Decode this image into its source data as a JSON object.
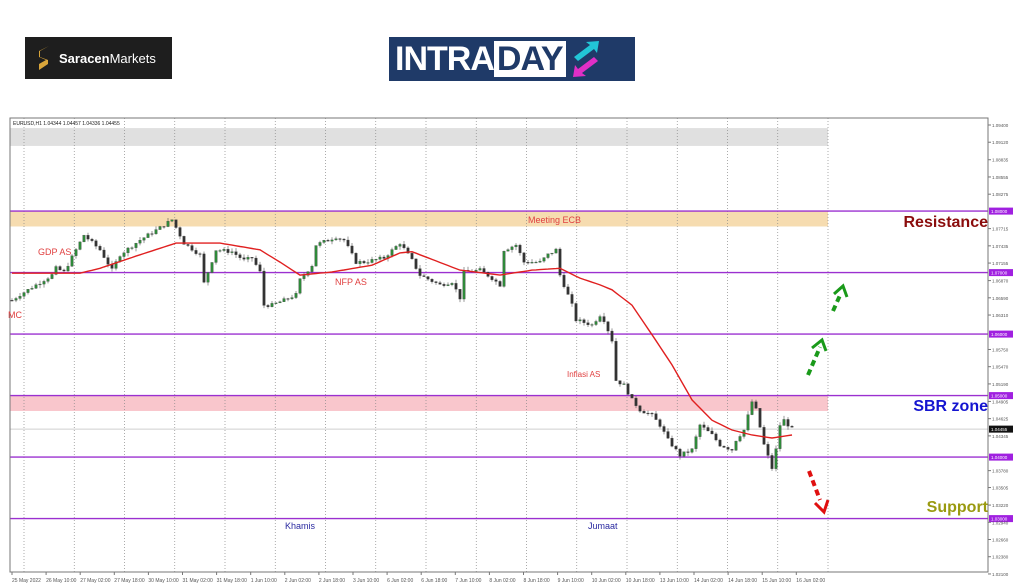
{
  "logos": {
    "saracen": {
      "bold": "Saracen",
      "regular": "Markets"
    },
    "intraday": {
      "part1": "INTRA",
      "part2": "DAY"
    }
  },
  "chart_data": {
    "type": "candlestick",
    "symbol_info": "EURUSD,H1  1.04344 1.04457 1.04336 1.04455",
    "current_price": 1.04455,
    "current_price_label": "1.04455",
    "ylim": [
      1.0202,
      1.095
    ],
    "y_ticks": [
      "1.09400",
      "1.09120",
      "1.08835",
      "1.08555",
      "1.08275",
      "1.07715",
      "1.07435",
      "1.07155",
      "1.06870",
      "1.06590",
      "1.06310",
      "1.05750",
      "1.05470",
      "1.05190",
      "1.04905",
      "1.04625",
      "1.04345",
      "1.03780",
      "1.03505",
      "1.03220",
      "1.02940",
      "1.02660",
      "1.02380",
      "1.02100"
    ],
    "y_tick_values": [
      1.094,
      1.0912,
      1.08835,
      1.08555,
      1.08275,
      1.07715,
      1.07435,
      1.07155,
      1.0687,
      1.0659,
      1.0631,
      1.0575,
      1.0547,
      1.0519,
      1.04905,
      1.04625,
      1.04345,
      1.0378,
      1.03505,
      1.0322,
      1.0294,
      1.0266,
      1.0238,
      1.021
    ],
    "x_ticks": [
      "25 May 2022",
      "26 May 10:00",
      "27 May 02:00",
      "27 May 18:00",
      "30 May 10:00",
      "31 May 02:00",
      "31 May 18:00",
      "1 Jun 10:00",
      "2 Jun 02:00",
      "2 Jun 18:00",
      "3 Jun 10:00",
      "6 Jun 02:00",
      "6 Jun 18:00",
      "7 Jun 10:00",
      "8 Jun 02:00",
      "8 Jun 18:00",
      "9 Jun 10:00",
      "10 Jun 02:00",
      "10 Jun 18:00",
      "13 Jun 10:00",
      "14 Jun 02:00",
      "14 Jun 18:00",
      "15 Jun 10:00",
      "16 Jun 02:00"
    ],
    "grid": true,
    "close_path": [
      [
        0,
        1.0655
      ],
      [
        2,
        1.0664
      ],
      [
        6,
        1.068
      ],
      [
        10,
        1.0696
      ],
      [
        11,
        1.0707
      ],
      [
        13,
        1.0701
      ],
      [
        18,
        1.0761
      ],
      [
        22,
        1.0737
      ],
      [
        25,
        1.0704
      ],
      [
        27,
        1.0729
      ],
      [
        32,
        1.0753
      ],
      [
        37,
        1.0773
      ],
      [
        40,
        1.0786
      ],
      [
        43,
        1.0748
      ],
      [
        47,
        1.0729
      ],
      [
        48,
        1.0683
      ],
      [
        51,
        1.0737
      ],
      [
        55,
        1.0734
      ],
      [
        58,
        1.072
      ],
      [
        60,
        1.0724
      ],
      [
        62,
        1.0701
      ],
      [
        63,
        1.0647
      ],
      [
        65,
        1.0647
      ],
      [
        68,
        1.0655
      ],
      [
        71,
        1.0664
      ],
      [
        72,
        1.0688
      ],
      [
        75,
        1.0712
      ],
      [
        76,
        1.0745
      ],
      [
        81,
        1.0758
      ],
      [
        83,
        1.0753
      ],
      [
        86,
        1.0717
      ],
      [
        88,
        1.0717
      ],
      [
        93,
        1.0724
      ],
      [
        97,
        1.0748
      ],
      [
        100,
        1.072
      ],
      [
        102,
        1.0696
      ],
      [
        107,
        1.068
      ],
      [
        110,
        1.0685
      ],
      [
        112,
        1.0659
      ],
      [
        113,
        1.0701
      ],
      [
        117,
        1.0704
      ],
      [
        120,
        1.0691
      ],
      [
        122,
        1.068
      ],
      [
        123,
        1.0737
      ],
      [
        126,
        1.0745
      ],
      [
        128,
        1.0717
      ],
      [
        132,
        1.0717
      ],
      [
        134,
        1.0729
      ],
      [
        136,
        1.0737
      ],
      [
        137,
        1.0696
      ],
      [
        140,
        1.0647
      ],
      [
        141,
        1.0623
      ],
      [
        145,
        1.0615
      ],
      [
        147,
        1.0631
      ],
      [
        148,
        1.0623
      ],
      [
        150,
        1.059
      ],
      [
        151,
        1.0525
      ],
      [
        153,
        1.0517
      ],
      [
        155,
        1.0493
      ],
      [
        157,
        1.0477
      ],
      [
        160,
        1.0468
      ],
      [
        162,
        1.0452
      ],
      [
        164,
        1.0428
      ],
      [
        167,
        1.0403
      ],
      [
        170,
        1.0412
      ],
      [
        172,
        1.0452
      ],
      [
        175,
        1.0436
      ],
      [
        177,
        1.042
      ],
      [
        180,
        1.0412
      ],
      [
        181,
        1.0428
      ],
      [
        183,
        1.0444
      ],
      [
        185,
        1.049
      ],
      [
        186,
        1.0477
      ],
      [
        188,
        1.042
      ],
      [
        190,
        1.0382
      ],
      [
        191,
        1.0412
      ],
      [
        192,
        1.0452
      ],
      [
        193,
        1.046
      ],
      [
        195,
        1.04455
      ]
    ],
    "moving_average": [
      [
        0,
        1.0699
      ],
      [
        17,
        1.0699
      ],
      [
        22,
        1.0707
      ],
      [
        32,
        1.0729
      ],
      [
        41,
        1.0748
      ],
      [
        52,
        1.0748
      ],
      [
        62,
        1.0737
      ],
      [
        67,
        1.0717
      ],
      [
        72,
        1.0696
      ],
      [
        80,
        1.0701
      ],
      [
        90,
        1.0712
      ],
      [
        97,
        1.0732
      ],
      [
        100,
        1.0734
      ],
      [
        112,
        1.0704
      ],
      [
        122,
        1.0696
      ],
      [
        130,
        1.0704
      ],
      [
        137,
        1.0707
      ],
      [
        142,
        1.0691
      ],
      [
        147,
        1.068
      ],
      [
        150,
        1.0672
      ],
      [
        155,
        1.0647
      ],
      [
        160,
        1.0599
      ],
      [
        165,
        1.055
      ],
      [
        170,
        1.0493
      ],
      [
        175,
        1.046
      ],
      [
        180,
        1.0444
      ],
      [
        185,
        1.0436
      ],
      [
        190,
        1.0431
      ],
      [
        195,
        1.0436
      ]
    ],
    "levels": [
      {
        "price": 1.08,
        "label": "1.08000"
      },
      {
        "price": 1.07,
        "label": "1.07000"
      },
      {
        "price": 1.06,
        "label": "1.06000"
      },
      {
        "price": 1.05,
        "label": "1.05000"
      },
      {
        "price": 1.04,
        "label": "1.04000"
      },
      {
        "price": 1.03,
        "label": "1.03000"
      }
    ],
    "zones": [
      {
        "from": 1.0775,
        "to": 1.08,
        "color": "#f6dcb0"
      },
      {
        "from": 1.0475,
        "to": 1.05,
        "color": "#f9c6cc"
      },
      {
        "from": 1.0906,
        "to": 1.0935,
        "color": "#e0e0e0"
      }
    ],
    "annotations": {
      "gdp": "GDP AS",
      "mc": "MC",
      "nfp": "NFP AS",
      "ecb": "Meeting ECB",
      "inflation": "Inflasi AS",
      "thursday": "Khamis",
      "friday": "Jumaat"
    },
    "zone_labels": {
      "resistance": "Resistance",
      "sbr": "SBR zone",
      "support": "Support"
    },
    "colors": {
      "level": "#9b30d0",
      "ma": "#e02020",
      "bull": "#2f8a3a",
      "bear": "#333333",
      "resistance": "#8b0d0d",
      "sbr": "#1515d0",
      "support": "#9a9a10",
      "arrow_up": "#1a9a1a",
      "arrow_down": "#e01010"
    }
  }
}
